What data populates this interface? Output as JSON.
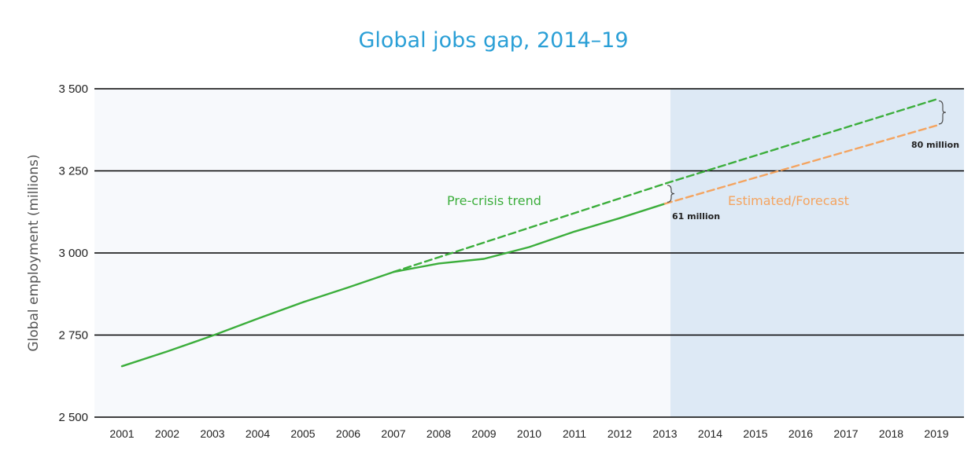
{
  "chart_data": {
    "type": "line",
    "title": "Global jobs gap, 2014–19",
    "xlabel": "",
    "ylabel": "Global employment (millions)",
    "x": [
      2001,
      2002,
      2003,
      2004,
      2005,
      2006,
      2007,
      2008,
      2009,
      2010,
      2011,
      2012,
      2013,
      2014,
      2015,
      2016,
      2017,
      2018,
      2019
    ],
    "xlim": [
      2001,
      2019
    ],
    "ylim": [
      2500,
      3500
    ],
    "yticks": [
      2500,
      2750,
      3000,
      3250,
      3500
    ],
    "ytick_labels": [
      "2 500",
      "2 750",
      "3 000",
      "3 250",
      "3 500"
    ],
    "xtick_labels": [
      "2001",
      "2002",
      "2003",
      "2004",
      "2005",
      "2006",
      "2007",
      "2008",
      "2009",
      "2010",
      "2011",
      "2012",
      "2013",
      "2014",
      "2015",
      "2016",
      "2017",
      "2018",
      "2019"
    ],
    "grid": "horizontal",
    "shaded_region": {
      "from": 2013,
      "to": 2019,
      "color": "#dde9f5"
    },
    "series": [
      {
        "name": "",
        "style": "solid",
        "color": "#3cae3c",
        "x": [
          2001,
          2002,
          2003,
          2004,
          2005,
          2006,
          2007,
          2008,
          2009,
          2010,
          2011,
          2012,
          2013
        ],
        "y": [
          2655,
          2700,
          2748,
          2800,
          2850,
          2895,
          2942,
          2968,
          2982,
          3018,
          3065,
          3106,
          3150
        ]
      },
      {
        "name": "",
        "label_key": "annotations.pre_crisis",
        "style": "dashed",
        "color": "#3cae3c",
        "x": [
          2007,
          2013,
          2019
        ],
        "y": [
          2942,
          3211,
          3468
        ]
      },
      {
        "name": "",
        "label_key": "annotations.estimated",
        "style": "dashed",
        "color": "#f4a460",
        "x": [
          2013,
          2019
        ],
        "y": [
          3150,
          3388
        ]
      }
    ],
    "annotations": {
      "pre_crisis": "Pre-crisis trend",
      "estimated": "Estimated/Forecast",
      "gap_2013": "61 million",
      "gap_2019": "80 million"
    },
    "colors": {
      "title": "#2a9fd6",
      "plot_background": "#f7f9fc",
      "gridline": "#000000"
    }
  }
}
